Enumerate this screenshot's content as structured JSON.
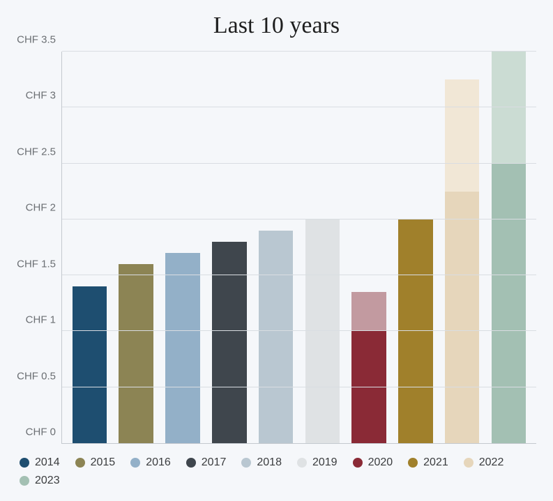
{
  "chart": {
    "title": "Last 10 years",
    "title_fontsize": 34,
    "title_color": "#1e1e1e",
    "background_color": "#f5f7fa",
    "axis_color": "#c4c9cf",
    "grid_color": "#d9dde2",
    "tick_font_color": "#6b6f73",
    "tick_fontsize": 15,
    "legend_font_color": "#3a3c3e",
    "legend_fontsize": 16,
    "y": {
      "min": 0,
      "max": 3.5,
      "ticks": [
        0,
        0.5,
        1,
        1.5,
        2,
        2.5,
        3,
        3.5
      ],
      "tick_labels": [
        "CHF 0",
        "CHF 0.5",
        "CHF 1",
        "CHF 1.5",
        "CHF 2",
        "CHF 2.5",
        "CHF 3",
        "CHF 3.5"
      ]
    },
    "series": [
      {
        "year": "2014",
        "color": "#1e4e70",
        "segments": [
          {
            "value": 1.4,
            "color": "#1e4e70"
          }
        ]
      },
      {
        "year": "2015",
        "color": "#8c8454",
        "segments": [
          {
            "value": 1.6,
            "color": "#8c8454"
          }
        ]
      },
      {
        "year": "2016",
        "color": "#93b0c8",
        "segments": [
          {
            "value": 1.7,
            "color": "#93b0c8"
          }
        ]
      },
      {
        "year": "2017",
        "color": "#3f464d",
        "segments": [
          {
            "value": 1.8,
            "color": "#3f464d"
          }
        ]
      },
      {
        "year": "2018",
        "color": "#b9c7d1",
        "segments": [
          {
            "value": 1.9,
            "color": "#b9c7d1"
          }
        ]
      },
      {
        "year": "2019",
        "color": "#dfe2e4",
        "segments": [
          {
            "value": 2.0,
            "color": "#dfe2e4"
          }
        ]
      },
      {
        "year": "2020",
        "color": "#8a2a36",
        "segments": [
          {
            "value": 1.0,
            "color": "#8a2a36"
          },
          {
            "value": 0.35,
            "color": "#c29aa0"
          }
        ]
      },
      {
        "year": "2021",
        "color": "#a0802b",
        "segments": [
          {
            "value": 2.0,
            "color": "#a0802b"
          }
        ]
      },
      {
        "year": "2022",
        "color": "#e6d6bb",
        "segments": [
          {
            "value": 2.25,
            "color": "#e6d6bb"
          },
          {
            "value": 1.0,
            "color": "#f1e7d6"
          }
        ]
      },
      {
        "year": "2023",
        "color": "#a3c0b3",
        "segments": [
          {
            "value": 2.5,
            "color": "#a3c0b3"
          },
          {
            "value": 1.0,
            "color": "#cbdcd3"
          }
        ]
      }
    ]
  }
}
